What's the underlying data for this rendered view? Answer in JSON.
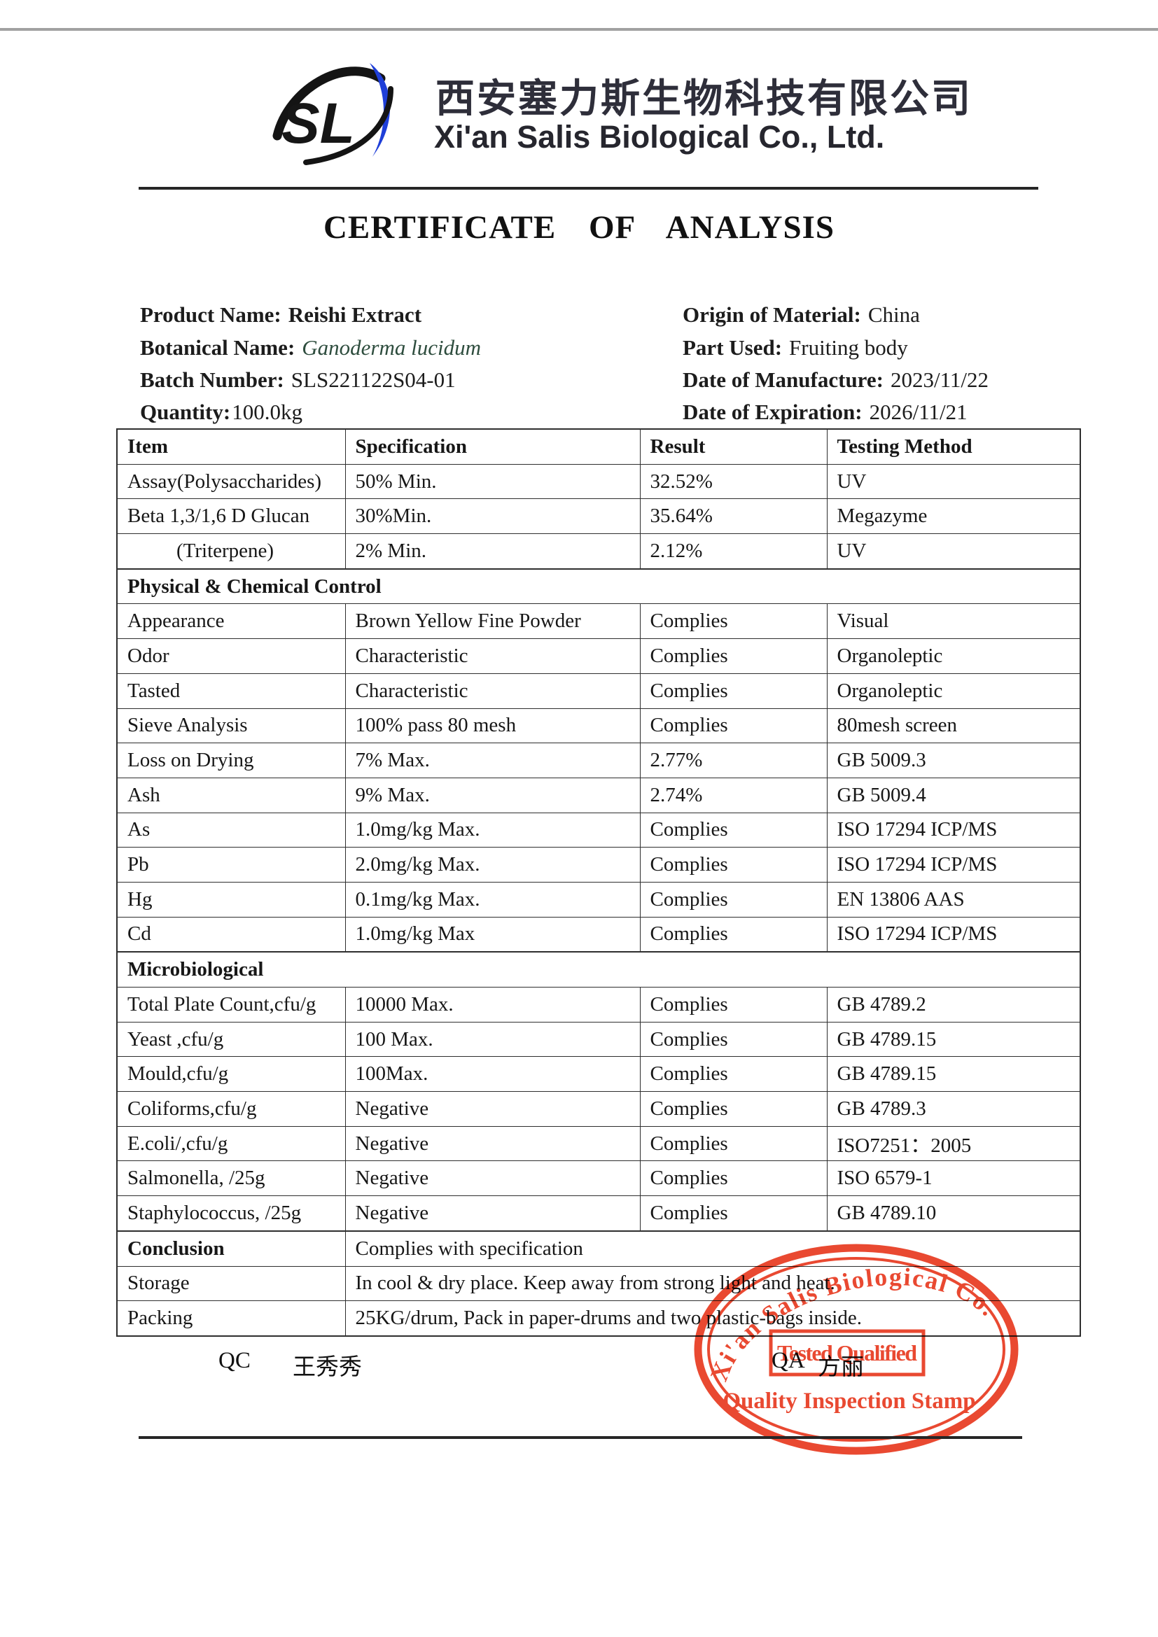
{
  "header": {
    "logo_text": "SL",
    "company_cn": "西安塞力斯生物科技有限公司",
    "company_en": "Xi'an Salis Biological Co., Ltd."
  },
  "title": "CERTIFICATE OF ANALYSIS",
  "product_info": {
    "left": [
      {
        "label": "Product Name:",
        "value": "Reishi Extract"
      },
      {
        "label": "Botanical Name:",
        "value": "Ganoderma lucidum"
      },
      {
        "label": "Batch Number:",
        "value": "SLS221122S04-01"
      },
      {
        "label": "Quantity:",
        "value": "100.0kg"
      }
    ],
    "right": [
      {
        "label": "Origin of Material:",
        "value": "China"
      },
      {
        "label": "Part Used:",
        "value": "Fruiting body"
      },
      {
        "label": "Date of Manufacture:",
        "value": "2023/11/22"
      },
      {
        "label": "Date of Expiration:",
        "value": "2026/11/21"
      }
    ]
  },
  "table": {
    "rows": [
      {
        "type": "header",
        "cells": [
          "Item",
          "Specification",
          "Result",
          "Testing Method"
        ]
      },
      {
        "type": "data",
        "item": "Assay(Polysaccharides)",
        "spec": "50% Min.",
        "result": "32.52%",
        "method": "UV"
      },
      {
        "type": "data",
        "item": "Beta 1,3/1,6 D Glucan",
        "spec": "30%Min.",
        "result": "35.64%",
        "method": "Megazyme"
      },
      {
        "type": "data",
        "indent": true,
        "item": "(Triterpene)",
        "spec": "2% Min.",
        "result": "2.12%",
        "method": "UV"
      },
      {
        "type": "section",
        "title": "Physical & Chemical Control"
      },
      {
        "type": "data",
        "item": "Appearance",
        "spec": "Brown Yellow Fine Powder",
        "result": "Complies",
        "method": "Visual"
      },
      {
        "type": "data",
        "item": "Odor",
        "spec": "Characteristic",
        "result": "Complies",
        "method": "Organoleptic"
      },
      {
        "type": "data",
        "item": "Tasted",
        "spec": "Characteristic",
        "result": "Complies",
        "method": "Organoleptic"
      },
      {
        "type": "data",
        "item": "Sieve Analysis",
        "spec": "100% pass 80 mesh",
        "result": "Complies",
        "method": "80mesh screen"
      },
      {
        "type": "data",
        "item": "Loss on Drying",
        "spec": "7% Max.",
        "result": "2.77%",
        "method": "GB 5009.3"
      },
      {
        "type": "data",
        "item": "Ash",
        "spec": "9% Max.",
        "result": "2.74%",
        "method": "GB 5009.4"
      },
      {
        "type": "data",
        "item": "As",
        "spec": "1.0mg/kg Max.",
        "result": "Complies",
        "method": "ISO 17294 ICP/MS"
      },
      {
        "type": "data",
        "item": "Pb",
        "spec": "2.0mg/kg Max.",
        "result": "Complies",
        "method": "ISO 17294 ICP/MS"
      },
      {
        "type": "data",
        "item": "Hg",
        "spec": "0.1mg/kg Max.",
        "result": "Complies",
        "method": "EN 13806 AAS"
      },
      {
        "type": "data",
        "item": "Cd",
        "spec": "1.0mg/kg Max",
        "result": "Complies",
        "method": "ISO 17294 ICP/MS"
      },
      {
        "type": "section",
        "title": "Microbiological"
      },
      {
        "type": "data",
        "item": "Total Plate Count,cfu/g",
        "spec": "10000 Max.",
        "result": "Complies",
        "method": "GB 4789.2"
      },
      {
        "type": "data",
        "item": "Yeast ,cfu/g",
        "spec": "100 Max.",
        "result": "Complies",
        "method": "GB 4789.15"
      },
      {
        "type": "data",
        "item": "Mould,cfu/g",
        "spec": "100Max.",
        "result": "Complies",
        "method": "GB 4789.15"
      },
      {
        "type": "data",
        "item": "Coliforms,cfu/g",
        "spec": "Negative",
        "result": "Complies",
        "method": "GB 4789.3"
      },
      {
        "type": "data",
        "item": "E.coli/,cfu/g",
        "spec": "Negative",
        "result": "Complies",
        "method": "ISO7251：2005"
      },
      {
        "type": "data",
        "item": "Salmonella, /25g",
        "spec": "Negative",
        "result": "Complies",
        "method": "ISO 6579-1"
      },
      {
        "type": "data",
        "item": "Staphylococcus, /25g",
        "spec": "Negative",
        "result": "Complies",
        "method": "GB 4789.10"
      },
      {
        "type": "conclusion",
        "label": "Conclusion",
        "value": "Complies with specification"
      },
      {
        "type": "kv",
        "label": "Storage",
        "value": "In cool & dry place. Keep away from strong light and heat."
      },
      {
        "type": "kv",
        "label": "Packing",
        "value": "25KG/drum, Pack in paper-drums and two plastic-bags inside."
      }
    ]
  },
  "footer": {
    "qc_label": "QC",
    "qc_name": "王秀秀",
    "qa_label": "QA",
    "qa_name": "方丽"
  },
  "stamp": {
    "arc_text": "Xi'an Salis Biological Co.",
    "box_text": "Tested Qualified",
    "bottom_text": "Quality Inspection Stamp",
    "color": "#e8391f"
  }
}
